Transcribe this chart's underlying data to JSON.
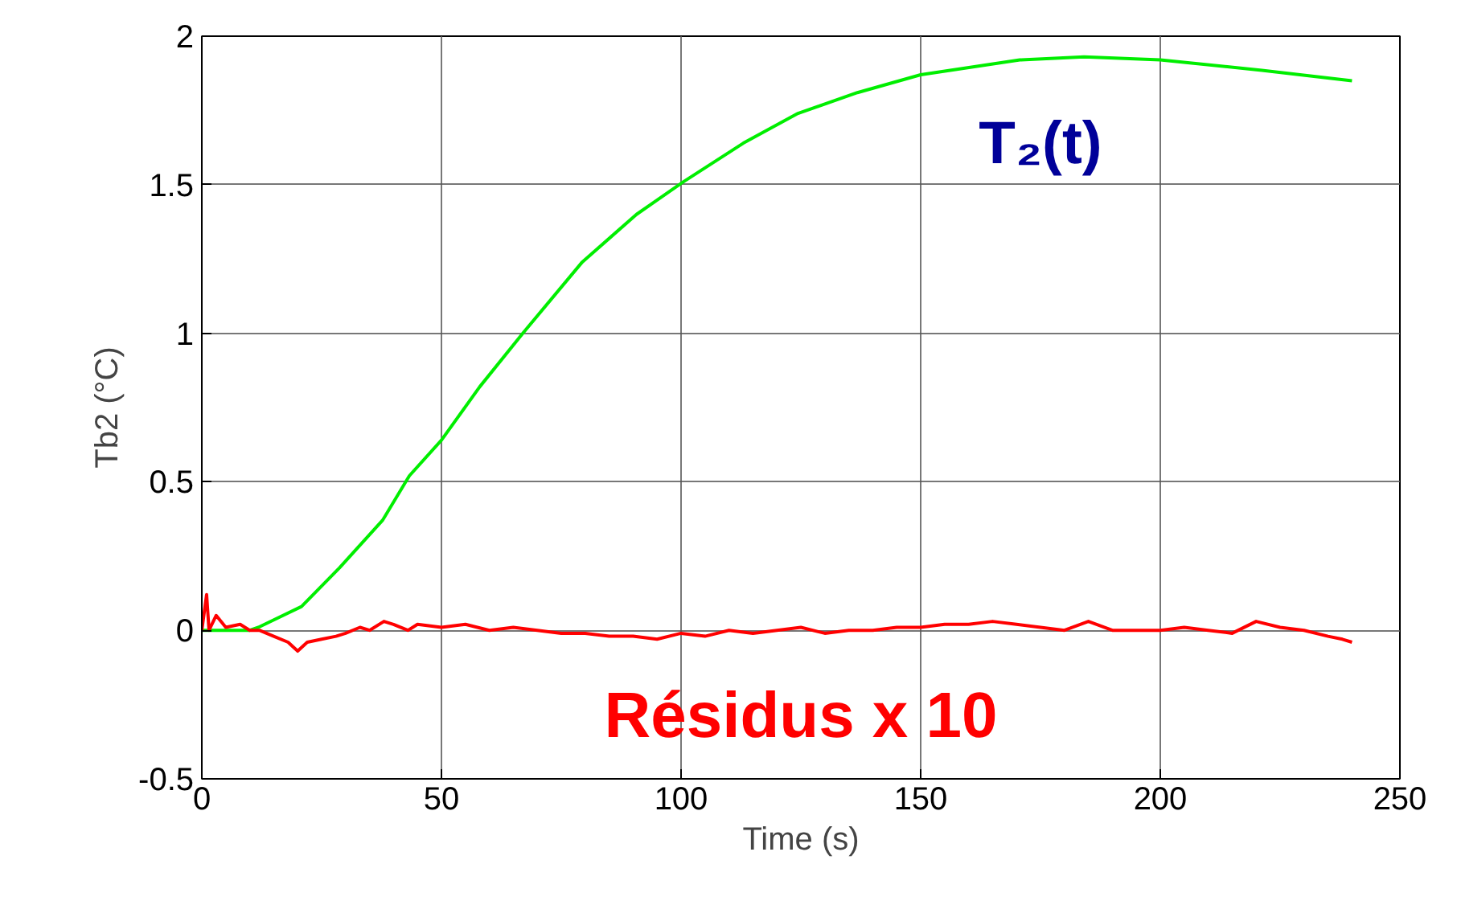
{
  "chart_data": {
    "type": "line",
    "xlabel": "Time (s)",
    "ylabel": "Tb2 (°C)",
    "xlim": [
      0,
      250
    ],
    "xticks": [
      0,
      50,
      100,
      150,
      200,
      250
    ],
    "ylim": [
      -0.5,
      2
    ],
    "yticks": [
      -0.5,
      0,
      0.5,
      1,
      1.5,
      2
    ],
    "grid": true,
    "marker": "none",
    "line_style": "solid",
    "series": [
      {
        "color": "#00ee00",
        "x": [
          0,
          5,
          10,
          11.8,
          20.8,
          28.7,
          37.7,
          43.3,
          50,
          58,
          67,
          79.4,
          90.7,
          100.5,
          113,
          124.4,
          136.8,
          150,
          170.7,
          184.1,
          200,
          221.2,
          240
        ],
        "values": [
          0.0,
          0.0,
          0.0,
          0.01,
          0.08,
          0.21,
          0.37,
          0.52,
          0.64,
          0.82,
          1.0,
          1.24,
          1.4,
          1.51,
          1.64,
          1.74,
          1.81,
          1.87,
          1.92,
          1.93,
          1.92,
          1.885,
          1.85
        ]
      },
      {
        "color": "#ff0000",
        "x": [
          0,
          1,
          1.5,
          3,
          5,
          8,
          10,
          12,
          15,
          18,
          20,
          22,
          25,
          28,
          30,
          33,
          35,
          38,
          40,
          43,
          45,
          50,
          55,
          60,
          65,
          70,
          75,
          80,
          85,
          90,
          95,
          100,
          105,
          110,
          115,
          120,
          125,
          130,
          135,
          140,
          145,
          150,
          155,
          160,
          165,
          170,
          175,
          180,
          185,
          190,
          195,
          200,
          205,
          210,
          215,
          220,
          225,
          230,
          235,
          238,
          240
        ],
        "values": [
          0.0,
          0.12,
          0.0,
          0.05,
          0.01,
          0.02,
          0.0,
          0.0,
          -0.02,
          -0.04,
          -0.07,
          -0.04,
          -0.03,
          -0.02,
          -0.01,
          0.01,
          0.0,
          0.03,
          0.02,
          0.0,
          0.02,
          0.01,
          0.02,
          0.0,
          0.01,
          0.0,
          -0.01,
          -0.01,
          -0.02,
          -0.02,
          -0.03,
          -0.01,
          -0.02,
          0.0,
          -0.01,
          0.0,
          0.01,
          -0.01,
          0.0,
          0.0,
          0.01,
          0.01,
          0.02,
          0.02,
          0.03,
          0.02,
          0.01,
          0.0,
          0.03,
          0.0,
          0.0,
          0.0,
          0.01,
          0.0,
          -0.01,
          0.03,
          0.01,
          0.0,
          -0.02,
          -0.03,
          -0.04
        ]
      }
    ],
    "annotations": [
      "T₂(t)",
      "Résidus x 10"
    ]
  }
}
